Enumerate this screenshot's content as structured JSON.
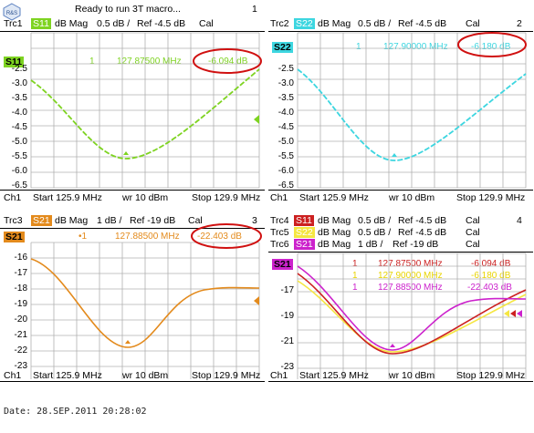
{
  "title_bar": {
    "status": "Ready to run 3T macro...",
    "logo_text": "R&S"
  },
  "panels": [
    {
      "number": "1",
      "traces": [
        {
          "label": "Trc1",
          "param": "S11",
          "fmt": "dB Mag",
          "scale": "0.5 dB /",
          "ref": "Ref -4.5 dB",
          "cal": "Cal",
          "color": "#7ed321"
        }
      ],
      "badge": "S11",
      "marker": {
        "num": "1",
        "freq": "127.87500  MHz",
        "value": "-6.094  dB"
      },
      "yticks": [
        "-2.5",
        "-3.0",
        "-3.5",
        "-4.0",
        "-4.5",
        "-5.0",
        "-5.5",
        "-6.0",
        "-6.5"
      ],
      "footer": {
        "ch": "Ch1",
        "start": "Start  125.9 MHz",
        "power": "wr  10 dBm",
        "stop": "Stop  129.9 MHz"
      }
    },
    {
      "number": "2",
      "traces": [
        {
          "label": "Trc2",
          "param": "S22",
          "fmt": "dB Mag",
          "scale": "0.5 dB /",
          "ref": "Ref -4.5 dB",
          "cal": "Cal",
          "color": "#3dd6e0"
        }
      ],
      "badge": "S22",
      "marker": {
        "num": "1",
        "freq": "127.90000  MHz",
        "value": "-6.180  dB"
      },
      "yticks": [
        "-2.5",
        "-3.0",
        "-3.5",
        "-4.0",
        "-4.5",
        "-5.0",
        "-5.5",
        "-6.0",
        "-6.5"
      ],
      "footer": {
        "ch": "Ch1",
        "start": "Start  125.9 MHz",
        "power": "wr  10 dBm",
        "stop": "Stop  129.9 MHz"
      }
    },
    {
      "number": "3",
      "traces": [
        {
          "label": "Trc3",
          "param": "S21",
          "fmt": "dB Mag",
          "scale": "1 dB /",
          "ref": "Ref -19 dB",
          "cal": "Cal",
          "color": "#e38a1c"
        }
      ],
      "badge": "S21",
      "marker": {
        "num": "•1",
        "freq": "127.88500  MHz",
        "value": "-22.403  dB"
      },
      "yticks": [
        "-16",
        "-17",
        "-18",
        "-19",
        "-20",
        "-21",
        "-22",
        "-23"
      ],
      "footer": {
        "ch": "Ch1",
        "start": "Start  125.9 MHz",
        "power": "wr  10 dBm",
        "stop": "Stop  129.9 MHz"
      }
    },
    {
      "number": "4",
      "traces": [
        {
          "label": "Trc4",
          "param": "S11",
          "fmt": "dB Mag",
          "scale": "0.5 dB /",
          "ref": "Ref -4.5 dB",
          "cal": "Cal",
          "color": "#cc2020"
        },
        {
          "label": "Trc5",
          "param": "S22",
          "fmt": "dB Mag",
          "scale": "0.5 dB /",
          "ref": "Ref -4.5 dB",
          "cal": "Cal",
          "color": "#f5e642"
        },
        {
          "label": "Trc6",
          "param": "S21",
          "fmt": "dB Mag",
          "scale": "1 dB /",
          "ref": "Ref -19 dB",
          "cal": "Cal",
          "color": "#cc22cc"
        }
      ],
      "badge": "S21",
      "markers": [
        {
          "num": "1",
          "freq": "127.87500  MHz",
          "value": "-6.094  dB",
          "color": "#cc2020"
        },
        {
          "num": "1",
          "freq": "127.90000  MHz",
          "value": "-6.180  dB",
          "color": "#e8d400"
        },
        {
          "num": "1",
          "freq": "127.88500  MHz",
          "value": "-22.403  dB",
          "color": "#cc22cc"
        }
      ],
      "yticks": [
        "-17",
        "-19",
        "-21",
        "-23"
      ],
      "footer": {
        "ch": "Ch1",
        "start": "Start  125.9 MHz",
        "power": "wr  10 dBm",
        "stop": "Stop  129.9 MHz"
      }
    }
  ],
  "date_line": "Date: 28.SEP.2011   20:28:02",
  "colors": {
    "highlight_ellipse": "#d01010",
    "grid": "#b0b0b0"
  }
}
